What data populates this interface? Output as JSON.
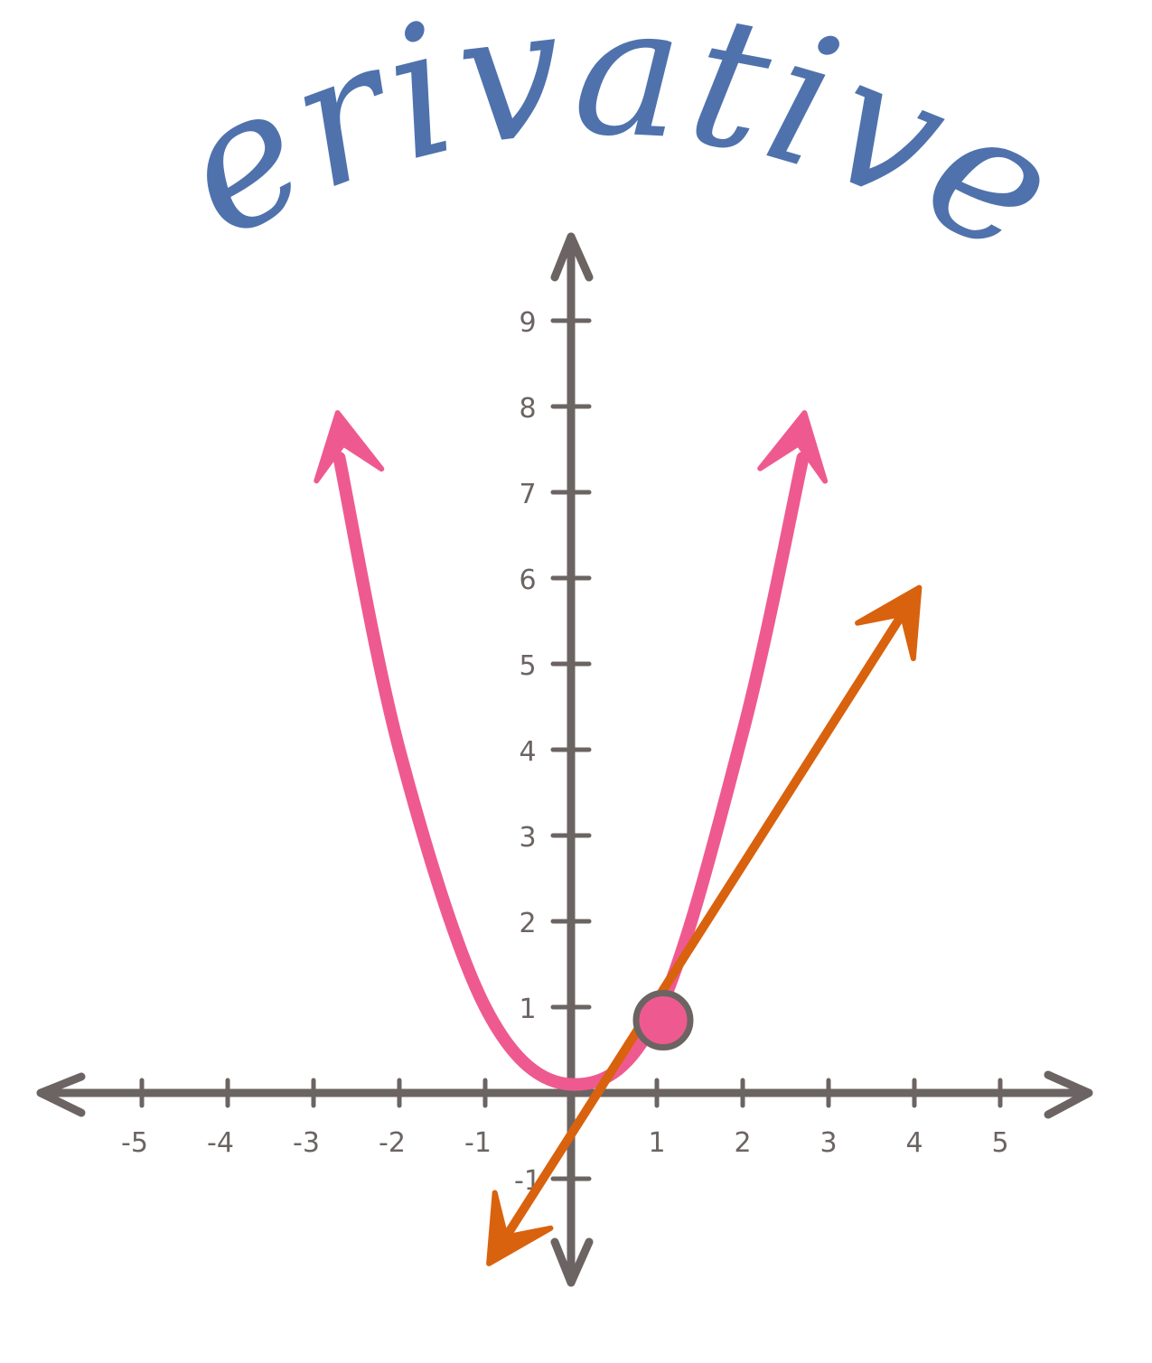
{
  "chart_data": {
    "type": "line",
    "title": "Derivatives",
    "xlabel": "",
    "ylabel": "",
    "xlim": [
      -5,
      5
    ],
    "ylim": [
      -1,
      9
    ],
    "x_ticks": [
      "-5",
      "-4",
      "-3",
      "-2",
      "-1",
      "1",
      "2",
      "3",
      "4",
      "5"
    ],
    "y_ticks": [
      "-1",
      "1",
      "2",
      "3",
      "4",
      "5",
      "6",
      "7",
      "8",
      "9"
    ],
    "grid": false,
    "series": [
      {
        "kind": "curve",
        "color": "#ee5a8f",
        "points": [
          {
            "x": -2.7,
            "y": 7.4
          },
          {
            "x": -2.0,
            "y": 4.0
          },
          {
            "x": -1.0,
            "y": 1.0
          },
          {
            "x": 0.0,
            "y": 0.1
          },
          {
            "x": 1.0,
            "y": 0.9
          },
          {
            "x": 2.0,
            "y": 4.2
          },
          {
            "x": 2.7,
            "y": 7.4
          }
        ]
      },
      {
        "kind": "tangent-line",
        "color": "#d9620e",
        "points": [
          {
            "x": -0.9,
            "y": -1.9
          },
          {
            "x": 4.0,
            "y": 5.8
          }
        ]
      }
    ],
    "highlight_point": {
      "x": 1.0,
      "y": 0.9,
      "color": "#ee5a8f"
    }
  },
  "colors": {
    "axis": "#6b6462",
    "curve": "#ee5a8f",
    "tangent": "#d9620e",
    "title": "#4f72ad"
  }
}
